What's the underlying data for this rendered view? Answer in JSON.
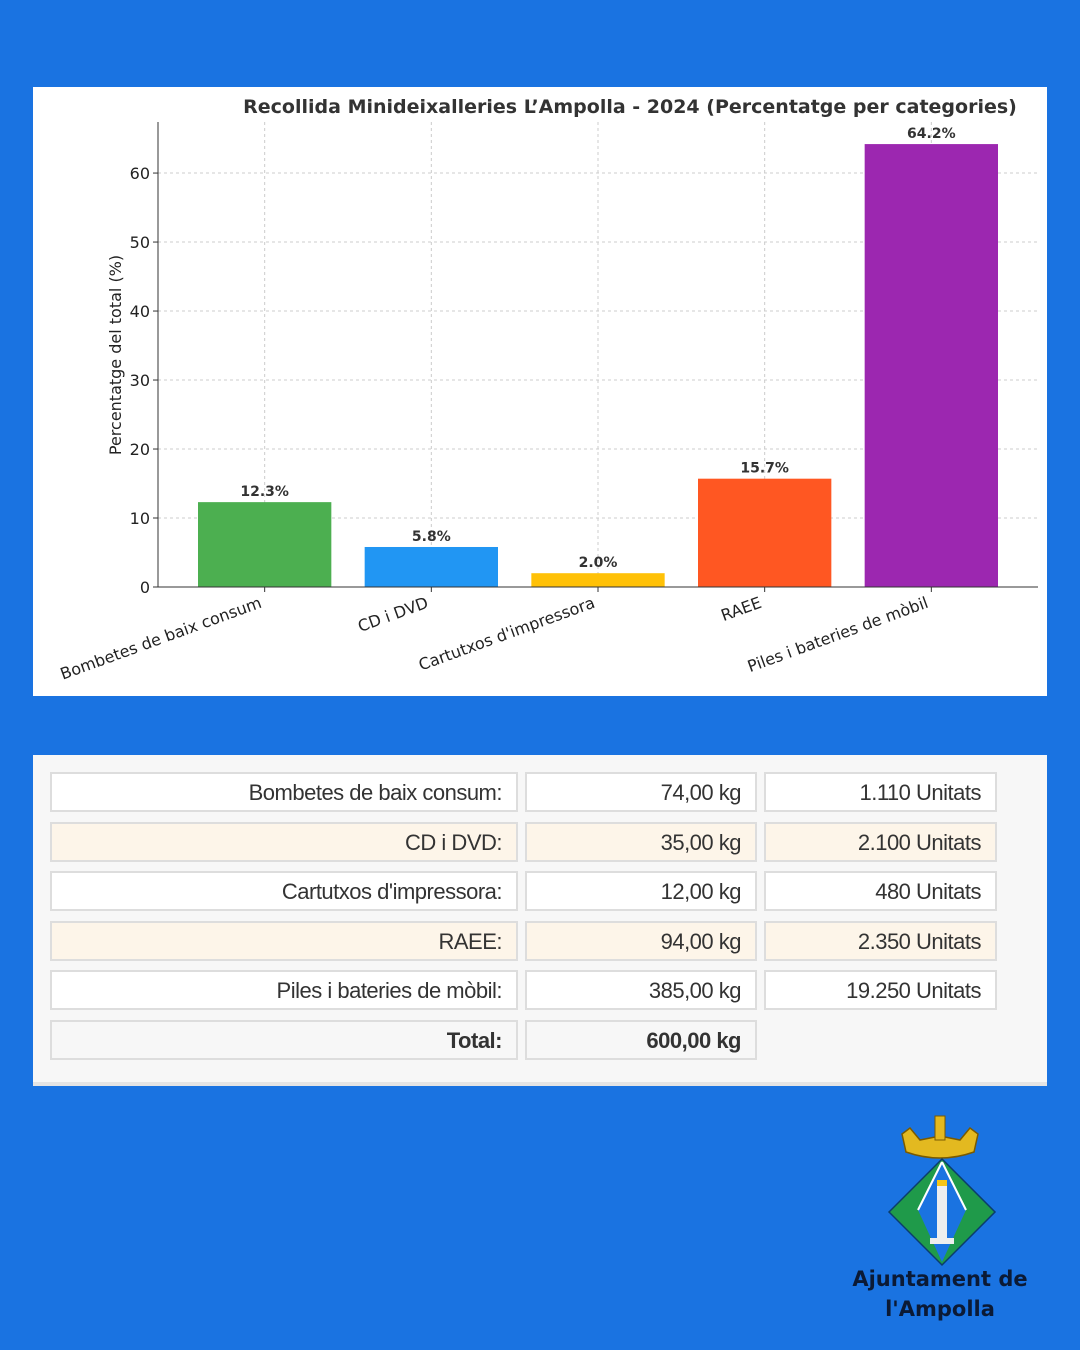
{
  "chart_data": {
    "type": "bar",
    "title": "Recollida Minideixalleries L’Ampolla - 2024 (Percentatge per categories)",
    "xlabel": "",
    "ylabel": "Percentatge del total (%)",
    "categories": [
      "Bombetes de baix consum",
      "CD i DVD",
      "Cartutxos d'impressora",
      "RAEE",
      "Piles i bateries de mòbil"
    ],
    "values": [
      12.3,
      5.8,
      2.0,
      15.7,
      64.2
    ],
    "data_labels": [
      "12.3%",
      "5.8%",
      "2.0%",
      "15.7%",
      "64.2%"
    ],
    "colors": [
      "#4caf50",
      "#2196f3",
      "#ffc107",
      "#ff5722",
      "#9c27b0"
    ],
    "ylim": [
      0,
      67.4
    ],
    "yticks": [
      0,
      10,
      20,
      30,
      40,
      50,
      60
    ],
    "grid": true
  },
  "table": {
    "rows": [
      {
        "label": "Bombetes de baix consum:",
        "kg": "74,00 kg",
        "units": "1.110 Unitats"
      },
      {
        "label": "CD i DVD:",
        "kg": "35,00 kg",
        "units": "2.100 Unitats"
      },
      {
        "label": "Cartutxos d'impressora:",
        "kg": "12,00 kg",
        "units": "480 Unitats"
      },
      {
        "label": "RAEE:",
        "kg": "94,00 kg",
        "units": "2.350 Unitats"
      },
      {
        "label": "Piles i bateries de mòbil:",
        "kg": "385,00 kg",
        "units": "19.250 Unitats"
      }
    ],
    "total": {
      "label": "Total:",
      "kg": "600,00 kg"
    }
  },
  "logo": {
    "line1": "Ajuntament de",
    "line2": "l'Ampolla"
  }
}
